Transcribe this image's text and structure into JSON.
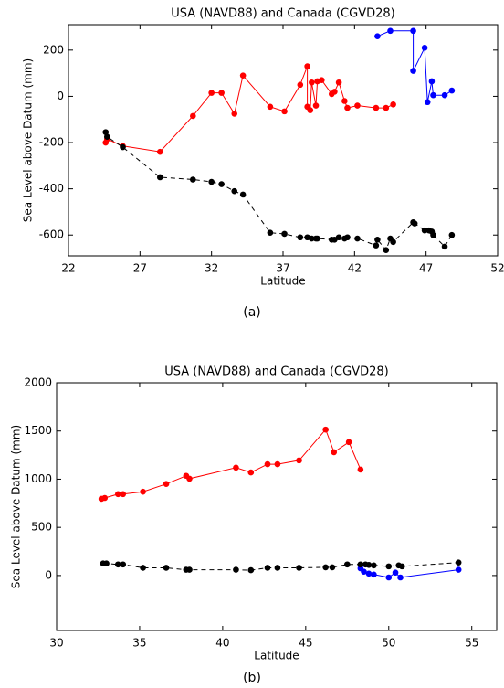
{
  "chart_data": [
    {
      "type": "line",
      "title": "USA (NAVD88) and Canada (CGVD28)",
      "xlabel": "Latitude",
      "ylabel": "Sea Level above Datum (mm)",
      "caption": "(a)",
      "xlim": [
        22,
        52
      ],
      "xticks": [
        22,
        27,
        32,
        37,
        42,
        47,
        52
      ],
      "ylim": [
        -690,
        310
      ],
      "yticks": [
        -600,
        -400,
        -200,
        0,
        200
      ],
      "grid": false,
      "series": [
        {
          "color": "#ff0000",
          "linestyle": "solid",
          "x": [
            24.6,
            24.7,
            25.8,
            28.4,
            30.7,
            32.0,
            32.7,
            33.6,
            34.2,
            36.1,
            37.1,
            38.2,
            38.7,
            38.7,
            38.9,
            39.0,
            39.3,
            39.4,
            39.7,
            40.4,
            40.6,
            40.9,
            41.3,
            41.5,
            42.2,
            43.5,
            44.2,
            44.7
          ],
          "values": [
            -200,
            -185,
            -215,
            -240,
            -85,
            15,
            15,
            -75,
            90,
            -45,
            -65,
            50,
            130,
            -45,
            -60,
            60,
            -40,
            65,
            70,
            10,
            20,
            60,
            -20,
            -50,
            -40,
            -50,
            -50,
            -35
          ]
        },
        {
          "color": "#0000ff",
          "linestyle": "solid",
          "x": [
            43.6,
            44.5,
            46.1,
            46.1,
            46.9,
            47.1,
            47.4,
            47.5,
            48.3,
            48.8
          ],
          "values": [
            260,
            283,
            283,
            110,
            210,
            -25,
            65,
            5,
            5,
            25
          ]
        },
        {
          "color": "#000000",
          "linestyle": "dashed",
          "x": [
            24.6,
            24.7,
            25.8,
            28.4,
            30.7,
            32.0,
            32.7,
            33.6,
            34.2,
            36.1,
            37.1,
            38.2,
            38.7,
            39.0,
            39.3,
            39.4,
            40.4,
            40.6,
            40.9,
            41.3,
            41.5,
            42.2,
            43.5,
            43.6,
            44.2,
            44.5,
            44.7,
            46.1,
            46.2,
            46.9,
            47.2,
            47.4,
            47.5,
            48.3,
            48.8
          ],
          "values": [
            -155,
            -175,
            -220,
            -350,
            -360,
            -370,
            -380,
            -410,
            -425,
            -590,
            -595,
            -610,
            -610,
            -615,
            -615,
            -615,
            -620,
            -620,
            -610,
            -615,
            -610,
            -615,
            -645,
            -620,
            -665,
            -615,
            -630,
            -545,
            -550,
            -580,
            -580,
            -585,
            -600,
            -650,
            -600
          ]
        }
      ]
    },
    {
      "type": "line",
      "title": "USA (NAVD88) and Canada (CGVD28)",
      "xlabel": "Latitude",
      "ylabel": "Sea Level above Datum (mm)",
      "caption": "(b)",
      "xlim": [
        30,
        56.5
      ],
      "xticks": [
        30,
        35,
        40,
        45,
        50,
        55
      ],
      "ylim": [
        -570,
        2000
      ],
      "yticks": [
        0,
        500,
        1000,
        1500,
        2000
      ],
      "grid": false,
      "series": [
        {
          "color": "#ff0000",
          "linestyle": "solid",
          "x": [
            32.7,
            32.9,
            33.7,
            34.0,
            35.2,
            36.6,
            37.8,
            38.0,
            40.8,
            41.7,
            42.7,
            43.3,
            44.6,
            46.2,
            46.7,
            47.6,
            48.3
          ],
          "values": [
            796,
            805,
            845,
            845,
            870,
            950,
            1035,
            1005,
            1120,
            1070,
            1155,
            1155,
            1195,
            1515,
            1280,
            1385,
            1100
          ]
        },
        {
          "color": "#0000ff",
          "linestyle": "solid",
          "x": [
            48.3,
            48.5,
            48.8,
            49.1,
            50.0,
            50.4,
            50.7,
            54.2
          ],
          "values": [
            75,
            40,
            20,
            10,
            -20,
            30,
            -20,
            60
          ]
        },
        {
          "color": "#000000",
          "linestyle": "dashed",
          "x": [
            32.8,
            33.0,
            33.7,
            34.0,
            35.2,
            36.6,
            37.8,
            38.0,
            40.8,
            41.7,
            42.7,
            43.3,
            44.6,
            46.2,
            46.6,
            47.5,
            48.3,
            48.6,
            48.8,
            49.1,
            50.0,
            50.6,
            50.8,
            54.2
          ],
          "values": [
            125,
            125,
            115,
            115,
            80,
            80,
            60,
            60,
            60,
            55,
            80,
            80,
            80,
            85,
            85,
            115,
            115,
            115,
            110,
            105,
            95,
            105,
            95,
            135
          ]
        }
      ]
    }
  ]
}
